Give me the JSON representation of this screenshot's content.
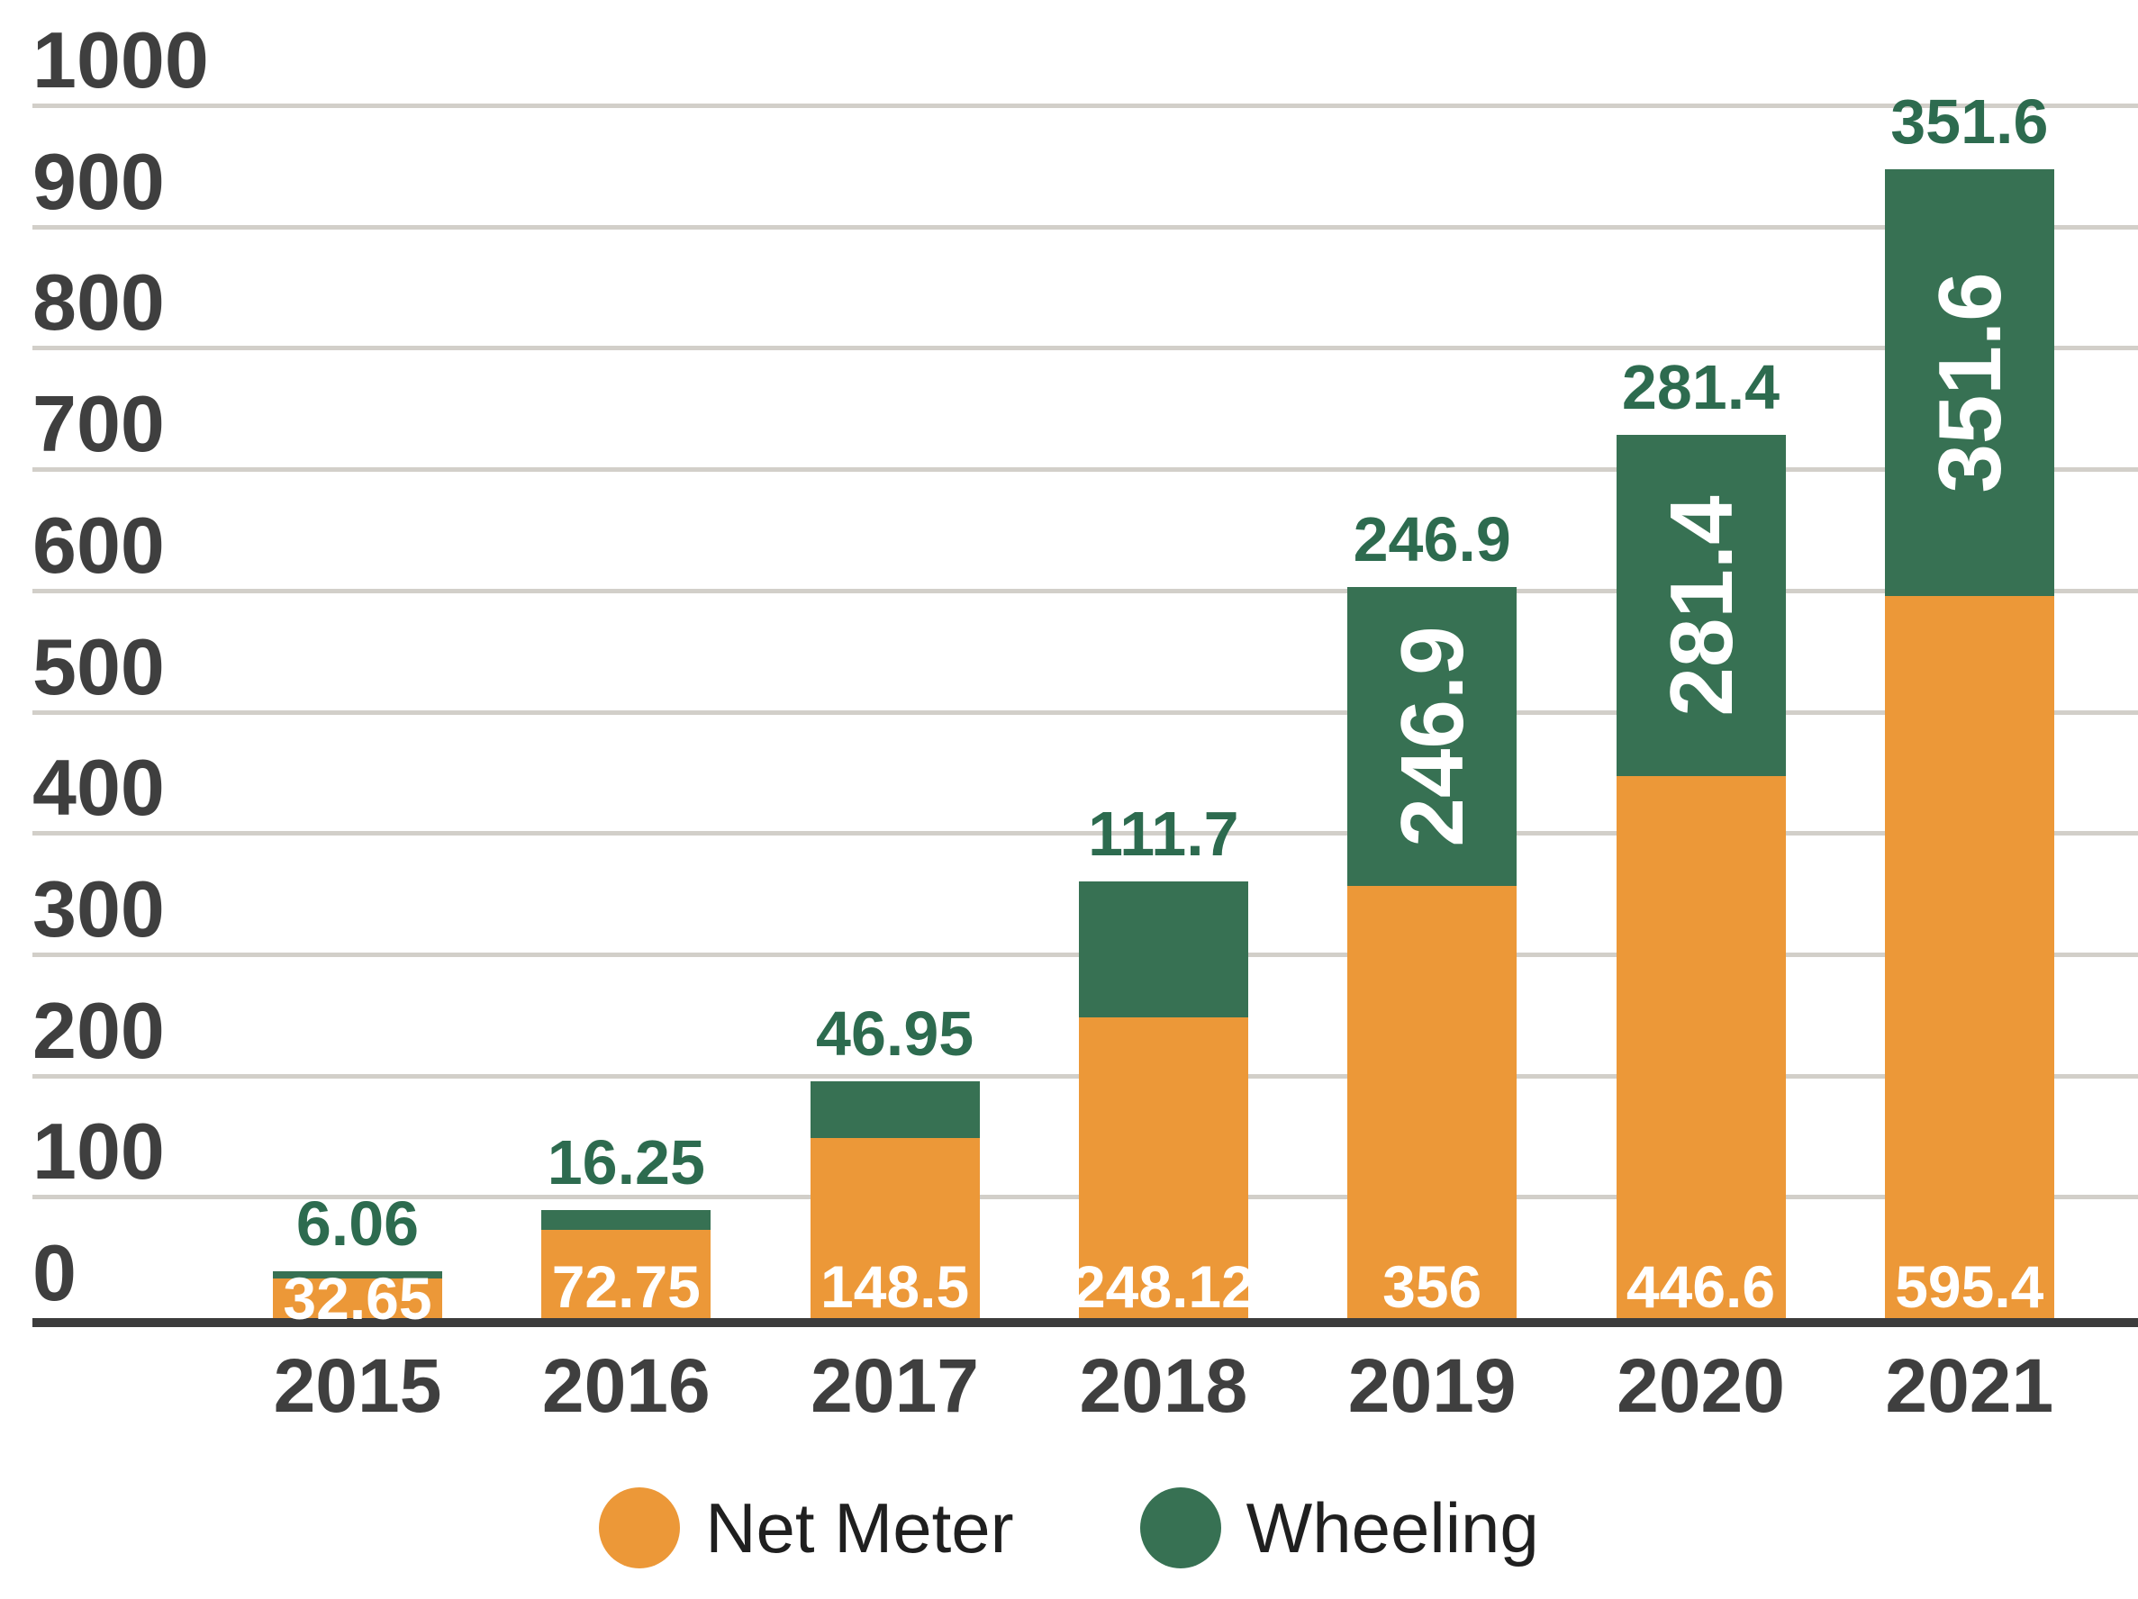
{
  "chart_data": {
    "type": "bar",
    "stacked": true,
    "title": "",
    "xlabel": "",
    "ylabel": "",
    "ylim": [
      0,
      1000
    ],
    "ytick_step": 100,
    "grid": true,
    "legend_position": "bottom",
    "categories": [
      "2015",
      "2016",
      "2017",
      "2018",
      "2019",
      "2020",
      "2021"
    ],
    "yticks": [
      "1000",
      "900",
      "800",
      "700",
      "600",
      "500",
      "400",
      "300",
      "200",
      "100",
      "0"
    ],
    "series": [
      {
        "name": "Net Meter",
        "color": "#EC9838",
        "values": [
          32.65,
          72.75,
          148.5,
          248.12,
          356,
          446.6,
          595.4
        ],
        "value_labels": [
          "32.65",
          "72.75",
          "148.5",
          "248.12",
          "356",
          "446.6",
          "595.4"
        ],
        "label_color": "#FFFFFF"
      },
      {
        "name": "Wheeling",
        "color": "#377153",
        "values": [
          6.06,
          16.25,
          46.95,
          111.7,
          246.9,
          281.4,
          351.6
        ],
        "value_labels": [
          "6.06",
          "16.25",
          "46.95",
          "111.7",
          "246.9",
          "281.4",
          "351.6"
        ],
        "inside_labels": [
          "",
          "",
          "",
          "",
          "246.9",
          "281.4",
          "351.6"
        ],
        "label_color": "#2D6B4F",
        "inside_label_color": "#FFFFFF"
      }
    ]
  },
  "legend": {
    "items": [
      {
        "label": "Net Meter",
        "color": "#EC9838"
      },
      {
        "label": "Wheeling",
        "color": "#377153"
      }
    ]
  },
  "colors": {
    "background": "#FFFFFF",
    "gridline": "#D2CFC9",
    "zero_line": "#3C3C3C",
    "axis_label": "#3F3F3F",
    "legend_text": "#1F1F1F",
    "green_value_text": "#2D6B4F",
    "white_value_text": "#FFFFFF"
  }
}
